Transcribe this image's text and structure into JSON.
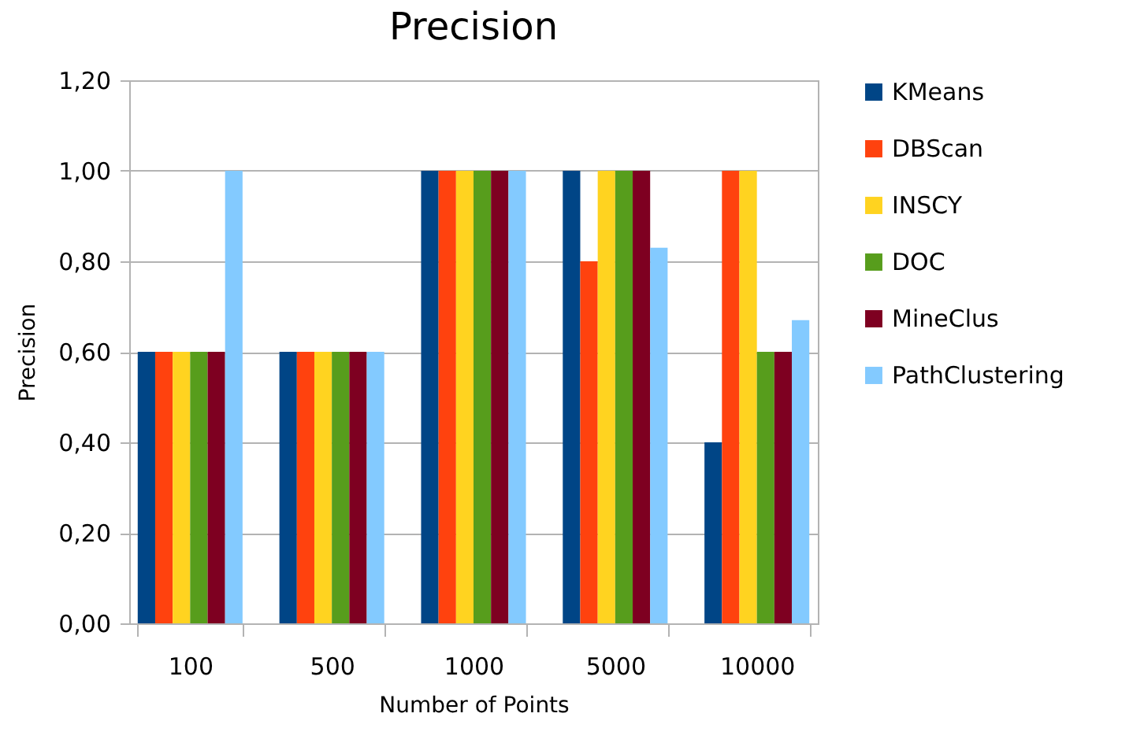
{
  "chart_data": {
    "type": "bar",
    "title": "Precision",
    "xlabel": "Number of Points",
    "ylabel": "Precision",
    "categories": [
      "100",
      "500",
      "1000",
      "5000",
      "10000"
    ],
    "series": [
      {
        "name": "KMeans",
        "color": "#004586",
        "values": [
          0.6,
          0.6,
          1.0,
          1.0,
          0.4
        ]
      },
      {
        "name": "DBScan",
        "color": "#ff420e",
        "values": [
          0.6,
          0.6,
          1.0,
          0.8,
          1.0
        ]
      },
      {
        "name": "INSCY",
        "color": "#ffd320",
        "values": [
          0.6,
          0.6,
          1.0,
          1.0,
          1.0
        ]
      },
      {
        "name": "DOC",
        "color": "#579d1c",
        "values": [
          0.6,
          0.6,
          1.0,
          1.0,
          0.6
        ]
      },
      {
        "name": "MineClus",
        "color": "#7e0021",
        "values": [
          0.6,
          0.6,
          1.0,
          1.0,
          0.6
        ]
      },
      {
        "name": "PathClustering",
        "color": "#83caff",
        "values": [
          1.0,
          0.6,
          1.0,
          0.83,
          0.67
        ]
      }
    ],
    "ylim": [
      0,
      1.2
    ],
    "yticks": [
      {
        "value": 0,
        "label": "0,00"
      },
      {
        "value": 0.2,
        "label": "0,20"
      },
      {
        "value": 0.4,
        "label": "0,40"
      },
      {
        "value": 0.6,
        "label": "0,60"
      },
      {
        "value": 0.8,
        "label": "0,80"
      },
      {
        "value": 1.0,
        "label": "1,00"
      },
      {
        "value": 1.2,
        "label": "1,20"
      }
    ],
    "grid": "y",
    "legend": "right"
  }
}
